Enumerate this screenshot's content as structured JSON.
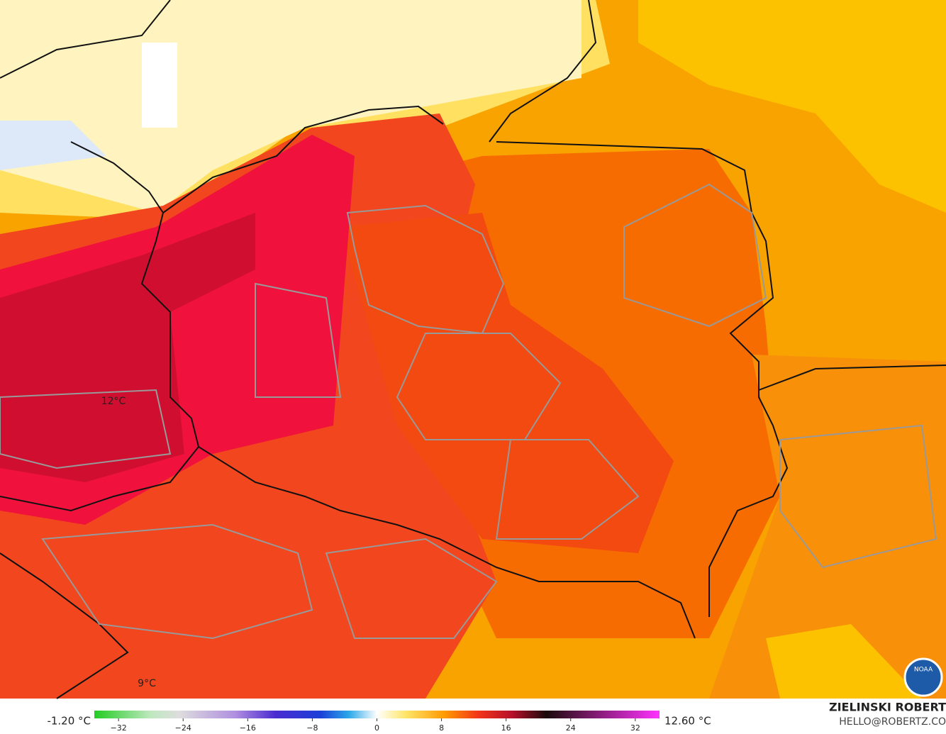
{
  "map_labels": [
    "12°C",
    "9°C"
  ],
  "legend": {
    "min_label": "-1.20 °C",
    "max_label": "12.60 °C",
    "range": [
      -35,
      35
    ],
    "ticks": [
      {
        "value": -32,
        "label": "−32"
      },
      {
        "value": -24,
        "label": "−24"
      },
      {
        "value": -16,
        "label": "−16"
      },
      {
        "value": -8,
        "label": "−8"
      },
      0,
      8,
      16,
      24,
      32
    ]
  },
  "credit": {
    "name": "ZIELINSKI ROBERT",
    "email": "HELLO@ROBERTZ.CO"
  },
  "logo": "NOAA"
}
